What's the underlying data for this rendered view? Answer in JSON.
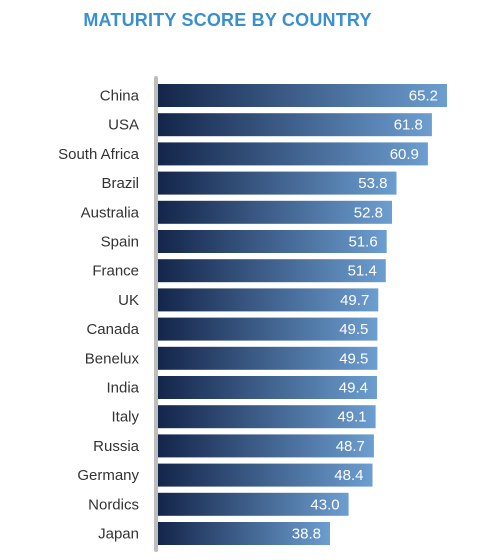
{
  "chart_data": {
    "type": "bar",
    "orientation": "horizontal",
    "title": "MATURITY SCORE BY COUNTRY",
    "xlabel": "",
    "ylabel": "",
    "categories": [
      "China",
      "USA",
      "South Africa",
      "Brazil",
      "Australia",
      "Spain",
      "France",
      "UK",
      "Canada",
      "Benelux",
      "India",
      "Italy",
      "Russia",
      "Germany",
      "Nordics",
      "Japan"
    ],
    "values": [
      65.2,
      61.8,
      60.9,
      53.8,
      52.8,
      51.6,
      51.4,
      49.7,
      49.5,
      49.5,
      49.4,
      49.1,
      48.7,
      48.4,
      43.0,
      38.8
    ],
    "value_labels": [
      "65.2",
      "61.8",
      "60.9",
      "53.8",
      "52.8",
      "51.6",
      "51.4",
      "49.7",
      "49.5",
      "49.5",
      "49.4",
      "49.1",
      "48.7",
      "48.4",
      "43.0",
      "38.8"
    ],
    "xlim": [
      0,
      70
    ],
    "grid": false,
    "legend": "none",
    "colors": {
      "title": "#3a8fd0",
      "bar_start": "#14254a",
      "bar_end": "#6c9ed0",
      "axis": "#bdbdbd",
      "label": "#333333",
      "value_text": "#ffffff"
    }
  }
}
